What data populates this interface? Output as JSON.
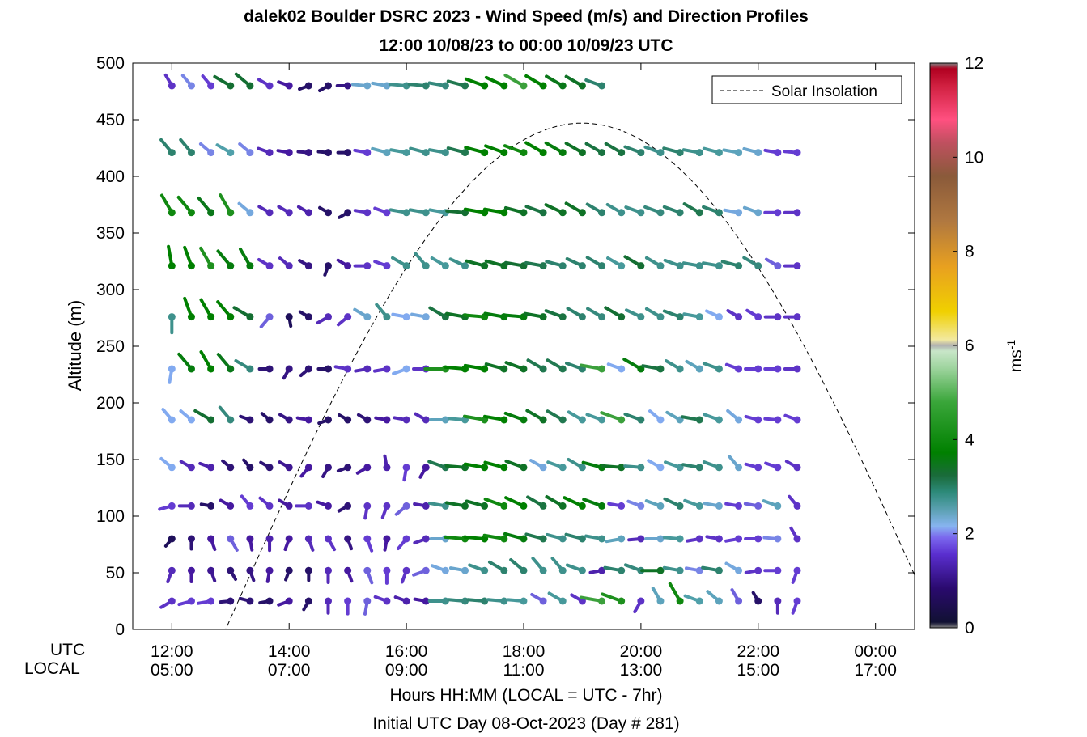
{
  "chart_data": {
    "type": "wind-barb profile",
    "title": "dalek02 Boulder DSRC 2023 - Wind Speed (m/s) and Direction Profiles",
    "subtitle": "12:00 10/08/23 to 00:00 10/09/23  UTC",
    "ylabel": "Altitude (m)",
    "ylim": [
      0,
      500
    ],
    "y_ticks": [
      "0",
      "50",
      "100",
      "150",
      "200",
      "250",
      "300",
      "350",
      "400",
      "450",
      "500"
    ],
    "xlabel": "Hours HH:MM  (LOCAL = UTC - 7hr)",
    "day_label": "Initial UTC Day 08-Oct-2023 (Day # 281)",
    "x_row_labels": [
      "UTC",
      "LOCAL"
    ],
    "x_ticks_utc": [
      "12:00",
      "14:00",
      "16:00",
      "18:00",
      "20:00",
      "22:00",
      "00:00"
    ],
    "x_ticks_local": [
      "05:00",
      "07:00",
      "09:00",
      "11:00",
      "13:00",
      "15:00",
      "17:00"
    ],
    "xlim_hours": [
      11.333,
      24.667
    ],
    "colorbar": {
      "label": "ms-1",
      "ticks": [
        "0",
        "2",
        "4",
        "6",
        "8",
        "10",
        "12"
      ],
      "range": [
        0,
        12
      ]
    },
    "legend": {
      "entry": "Solar Insolation",
      "placement": "top-right"
    },
    "solar_insolation": {
      "zero_before_hour": 12.917,
      "peak_hour": 19.0,
      "peak_altitude": 447,
      "rise_hour": 12.917,
      "set_hour": 24.667
    },
    "profile_altitudes": [
      25,
      52,
      80,
      109,
      143,
      185,
      230,
      276,
      321,
      368,
      421,
      480
    ],
    "time_start_hour": 12.0,
    "time_step_hours": 0.3333,
    "direction_unit": "degrees (barb points toward direction wind comes from)",
    "note_speed_data": "per-level row of speeds (m/s) at each sampled time",
    "profiles": [
      {
        "altitude": 25,
        "speed": [
          1.6,
          1.7,
          1.7,
          1.0,
          1.0,
          0.9,
          1.3,
          0.9,
          1.5,
          1.7,
          1.8,
          1.6,
          1.4,
          1.3,
          2.6,
          2.7,
          2.8,
          2.6,
          2.5,
          1.8,
          2.5,
          1.6,
          4.0,
          3.8,
          1.6,
          2.3,
          3.7,
          2.4,
          2.3,
          1.8,
          0.9,
          1.5,
          1.7
        ],
        "direction": [
          240,
          255,
          260,
          265,
          285,
          260,
          250,
          210,
          180,
          180,
          190,
          290,
          290,
          280,
          270,
          275,
          275,
          275,
          275,
          300,
          300,
          300,
          280,
          290,
          210,
          330,
          330,
          290,
          310,
          330,
          330,
          180,
          200
        ]
      },
      {
        "altitude": 52,
        "speed": [
          1.5,
          1.3,
          1.2,
          1.0,
          1.1,
          1.3,
          0.9,
          0.9,
          1.5,
          1.3,
          1.8,
          1.7,
          1.6,
          1.8,
          2.1,
          2.2,
          2.6,
          2.8,
          2.8,
          2.6,
          2.6,
          2.6,
          1.4,
          2.8,
          2.7,
          3.3,
          2.6,
          1.9,
          2.8,
          2.1,
          1.6,
          1.7,
          1.7
        ],
        "direction": [
          200,
          180,
          160,
          150,
          160,
          190,
          200,
          180,
          180,
          160,
          160,
          180,
          200,
          250,
          290,
          280,
          290,
          300,
          310,
          320,
          320,
          290,
          260,
          280,
          290,
          270,
          280,
          280,
          280,
          300,
          260,
          270,
          200
        ]
      },
      {
        "altitude": 80,
        "speed": [
          0.8,
          1.0,
          1.3,
          1.8,
          1.3,
          1.4,
          1.3,
          1.5,
          1.6,
          1.1,
          1.7,
          1.3,
          1.7,
          1.5,
          2.2,
          3.7,
          3.6,
          3.7,
          3.5,
          3.0,
          2.6,
          2.8,
          2.6,
          2.3,
          1.5,
          2.2,
          2.5,
          1.6,
          1.6,
          1.7,
          1.7,
          1.9,
          1.6
        ],
        "direction": [
          220,
          180,
          160,
          150,
          170,
          180,
          200,
          160,
          150,
          160,
          160,
          190,
          220,
          250,
          270,
          275,
          275,
          280,
          285,
          285,
          285,
          285,
          280,
          260,
          265,
          270,
          275,
          260,
          280,
          260,
          270,
          275,
          330
        ]
      },
      {
        "altitude": 109,
        "speed": [
          1.7,
          1.5,
          0.9,
          1.3,
          1.7,
          1.6,
          1.3,
          1.6,
          1.3,
          1.0,
          1.6,
          1.6,
          1.8,
          1.4,
          2.6,
          3.3,
          3.3,
          3.7,
          3.6,
          3.1,
          3.3,
          3.6,
          3.5,
          1.7,
          1.9,
          2.3,
          2.8,
          2.5,
          2.2,
          1.7,
          1.8,
          2.3,
          1.6
        ],
        "direction": [
          255,
          270,
          280,
          300,
          320,
          310,
          300,
          270,
          290,
          240,
          190,
          200,
          230,
          280,
          280,
          280,
          285,
          290,
          295,
          300,
          300,
          295,
          290,
          280,
          290,
          290,
          295,
          290,
          280,
          280,
          280,
          290,
          320
        ]
      },
      {
        "altitude": 143,
        "speed": [
          2.0,
          1.5,
          1.4,
          1.0,
          0.9,
          1.0,
          1.2,
          1.3,
          1.1,
          1.0,
          1.3,
          1.4,
          1.7,
          1.3,
          3.0,
          3.3,
          3.6,
          3.6,
          3.3,
          2.1,
          2.5,
          2.6,
          3.5,
          3.3,
          2.6,
          2.0,
          2.5,
          2.8,
          2.6,
          2.2,
          1.7,
          1.7,
          1.6
        ],
        "direction": [
          310,
          300,
          290,
          310,
          320,
          300,
          300,
          220,
          210,
          250,
          240,
          350,
          190,
          210,
          290,
          275,
          280,
          285,
          290,
          300,
          290,
          300,
          285,
          275,
          275,
          300,
          290,
          280,
          290,
          320,
          285,
          290,
          300
        ]
      },
      {
        "altitude": 185,
        "speed": [
          2.0,
          2.0,
          3.2,
          2.7,
          1.0,
          0.9,
          1.1,
          1.3,
          0.9,
          0.9,
          1.0,
          1.3,
          1.5,
          1.5,
          2.3,
          2.5,
          3.8,
          3.6,
          3.5,
          3.3,
          3.0,
          2.5,
          2.5,
          4.0,
          2.8,
          2.0,
          2.3,
          3.0,
          2.5,
          2.1,
          1.7,
          1.7,
          1.7
        ],
        "direction": [
          320,
          310,
          300,
          320,
          290,
          310,
          300,
          280,
          250,
          300,
          300,
          280,
          280,
          300,
          270,
          275,
          280,
          280,
          290,
          300,
          300,
          300,
          290,
          290,
          290,
          310,
          300,
          280,
          290,
          310,
          285,
          275,
          290
        ]
      },
      {
        "altitude": 230,
        "speed": [
          2.0,
          3.5,
          3.6,
          3.4,
          2.7,
          1.0,
          1.1,
          1.0,
          0.9,
          1.6,
          1.5,
          1.6,
          2.0,
          1.6,
          3.8,
          3.6,
          3.6,
          3.3,
          3.3,
          3.0,
          3.0,
          2.8,
          4.0,
          2.0,
          3.5,
          3.1,
          2.6,
          2.3,
          2.6,
          1.7,
          1.7,
          1.7,
          1.6
        ],
        "direction": [
          190,
          320,
          330,
          320,
          300,
          270,
          210,
          230,
          270,
          280,
          260,
          260,
          250,
          270,
          270,
          275,
          280,
          285,
          290,
          300,
          300,
          290,
          280,
          290,
          300,
          280,
          300,
          300,
          290,
          290,
          270,
          270,
          270
        ]
      },
      {
        "altitude": 276,
        "speed": [
          2.6,
          3.6,
          3.6,
          3.6,
          3.2,
          1.8,
          0.8,
          0.9,
          1.5,
          1.6,
          2.2,
          2.6,
          2.0,
          2.1,
          3.1,
          3.3,
          3.7,
          3.5,
          3.5,
          3.3,
          3.1,
          2.8,
          2.7,
          3.2,
          2.6,
          2.6,
          2.8,
          2.5,
          2.0,
          1.6,
          1.7,
          1.6,
          1.6
        ],
        "direction": [
          180,
          340,
          330,
          320,
          300,
          220,
          170,
          300,
          240,
          230,
          300,
          320,
          280,
          280,
          300,
          280,
          275,
          280,
          275,
          280,
          290,
          300,
          300,
          300,
          295,
          300,
          290,
          280,
          295,
          300,
          300,
          270,
          270
        ]
      },
      {
        "altitude": 321,
        "speed": [
          3.6,
          3.6,
          3.8,
          3.5,
          3.5,
          1.6,
          1.5,
          1.1,
          0.9,
          1.3,
          1.6,
          1.7,
          2.6,
          2.6,
          2.5,
          2.6,
          3.3,
          3.3,
          3.2,
          3.0,
          2.8,
          2.8,
          2.8,
          2.5,
          3.2,
          2.6,
          2.6,
          2.6,
          2.6,
          2.8,
          2.7,
          1.8,
          1.6
        ],
        "direction": [
          350,
          340,
          330,
          320,
          330,
          300,
          310,
          300,
          200,
          300,
          270,
          290,
          300,
          320,
          300,
          295,
          285,
          285,
          280,
          280,
          285,
          295,
          300,
          300,
          300,
          300,
          290,
          280,
          280,
          285,
          300,
          300,
          270
        ]
      },
      {
        "altitude": 368,
        "speed": [
          3.7,
          3.7,
          3.4,
          3.8,
          2.1,
          1.5,
          1.5,
          1.4,
          0.9,
          0.9,
          1.6,
          1.7,
          2.6,
          2.6,
          2.5,
          3.2,
          3.6,
          3.6,
          3.3,
          3.1,
          3.3,
          3.3,
          2.8,
          2.6,
          2.6,
          2.7,
          2.8,
          3.0,
          2.8,
          2.1,
          2.2,
          1.7,
          1.6
        ],
        "direction": [
          330,
          320,
          320,
          330,
          310,
          300,
          300,
          300,
          300,
          240,
          280,
          290,
          280,
          280,
          280,
          275,
          280,
          280,
          285,
          290,
          295,
          300,
          300,
          300,
          290,
          290,
          290,
          300,
          290,
          280,
          290,
          270,
          270
        ]
      },
      {
        "altitude": 421,
        "speed": [
          2.8,
          2.8,
          1.9,
          2.4,
          1.9,
          1.5,
          1.3,
          1.1,
          0.9,
          0.9,
          1.7,
          2.3,
          2.5,
          2.6,
          2.6,
          3.0,
          3.6,
          3.6,
          3.7,
          3.6,
          3.5,
          3.3,
          3.1,
          3.1,
          2.8,
          2.6,
          2.8,
          2.6,
          2.5,
          2.3,
          2.2,
          1.7,
          1.7
        ],
        "direction": [
          320,
          320,
          310,
          300,
          310,
          290,
          280,
          275,
          275,
          270,
          280,
          285,
          280,
          285,
          280,
          285,
          285,
          290,
          290,
          300,
          300,
          300,
          300,
          300,
          290,
          290,
          285,
          280,
          285,
          280,
          285,
          280,
          275
        ]
      },
      {
        "altitude": 480,
        "speed": [
          1.6,
          1.9,
          1.7,
          3.2,
          3.2,
          1.6,
          1.3,
          0.9,
          0.9,
          1.1,
          2.2,
          2.2,
          2.6,
          2.8,
          2.7,
          3.0,
          3.6,
          3.6,
          4.0,
          3.6,
          3.4,
          3.3,
          2.8
        ],
        "direction": [
          330,
          320,
          320,
          300,
          310,
          300,
          290,
          250,
          240,
          270,
          275,
          280,
          275,
          275,
          280,
          285,
          290,
          295,
          300,
          300,
          300,
          300,
          290
        ]
      }
    ]
  }
}
